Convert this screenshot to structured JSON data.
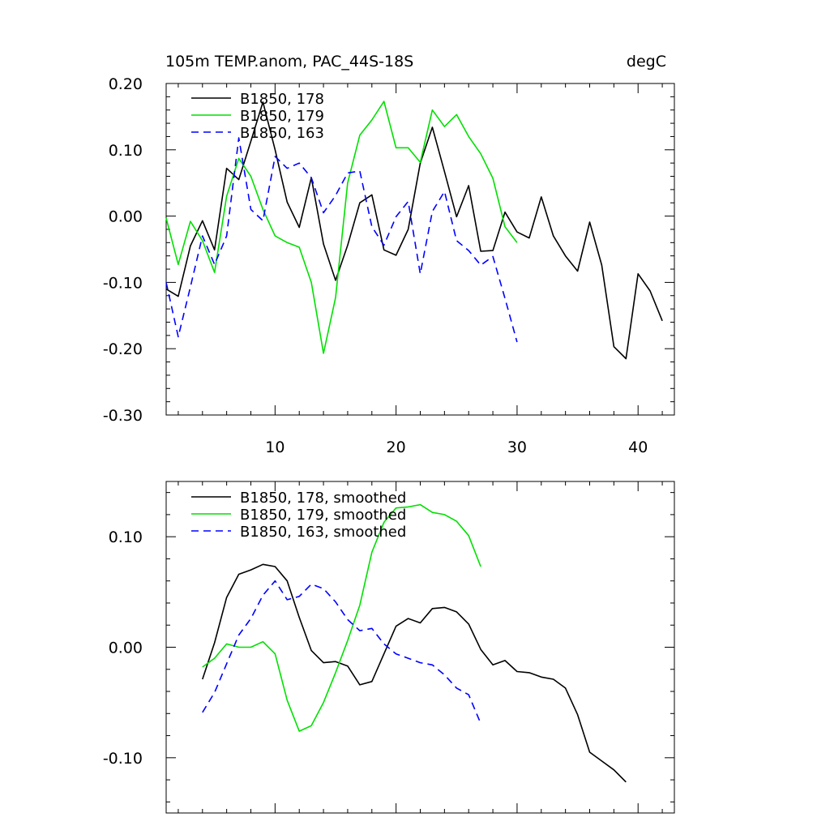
{
  "chart_data": [
    {
      "type": "line",
      "title": "105m TEMP.anom, PAC_44S-18S",
      "units": "degC",
      "xlim": [
        1,
        43
      ],
      "ylim": [
        -0.3,
        0.2
      ],
      "xticks": [
        10,
        20,
        30,
        40
      ],
      "xtick_labels": [
        "10",
        "20",
        "30",
        "40"
      ],
      "yticks": [
        -0.3,
        -0.2,
        -0.1,
        0.0,
        0.1,
        0.2
      ],
      "ytick_labels": [
        "-0.30",
        "-0.20",
        "-0.10",
        "0.00",
        "0.10",
        "0.20"
      ],
      "legend_position": "top-left",
      "series": [
        {
          "name": "B1850, 178",
          "color": "#000000",
          "dash": "solid",
          "x": [
            1,
            2,
            3,
            4,
            5,
            6,
            7,
            8,
            9,
            10,
            11,
            12,
            13,
            14,
            15,
            16,
            17,
            18,
            19,
            20,
            21,
            22,
            23,
            24,
            25,
            26,
            27,
            28,
            29,
            30,
            31,
            32,
            33,
            34,
            35,
            36,
            37,
            38,
            39,
            40,
            41,
            42
          ],
          "y": [
            -0.11,
            -0.121,
            -0.045,
            -0.007,
            -0.051,
            0.072,
            0.055,
            0.113,
            0.172,
            0.1,
            0.021,
            -0.017,
            0.058,
            -0.042,
            -0.097,
            -0.044,
            0.02,
            0.032,
            -0.051,
            -0.059,
            -0.02,
            0.08,
            0.134,
            0.067,
            -0.001,
            0.046,
            -0.053,
            -0.052,
            0.006,
            -0.024,
            -0.033,
            0.029,
            -0.03,
            -0.06,
            -0.083,
            -0.009,
            -0.074,
            -0.197,
            -0.215,
            -0.087,
            -0.113,
            -0.158
          ]
        },
        {
          "name": "B1850, 179",
          "color": "#00e000",
          "dash": "solid",
          "x": [
            1,
            2,
            3,
            4,
            5,
            6,
            7,
            8,
            9,
            10,
            11,
            12,
            13,
            14,
            15,
            16,
            17,
            18,
            19,
            20,
            21,
            22,
            23,
            24,
            25,
            26,
            27,
            28,
            29,
            30
          ],
          "y": [
            -0.003,
            -0.073,
            -0.008,
            -0.037,
            -0.085,
            0.03,
            0.087,
            0.06,
            0.01,
            -0.03,
            -0.04,
            -0.047,
            -0.1,
            -0.207,
            -0.123,
            0.05,
            0.122,
            0.145,
            0.173,
            0.103,
            0.103,
            0.081,
            0.16,
            0.135,
            0.153,
            0.12,
            0.094,
            0.057,
            -0.016,
            -0.04
          ]
        },
        {
          "name": "B1850, 163",
          "color": "#0000ff",
          "dash": "dashed",
          "x": [
            1,
            2,
            3,
            4,
            5,
            6,
            7,
            8,
            9,
            10,
            11,
            12,
            13,
            14,
            15,
            16,
            17,
            18,
            19,
            20,
            21,
            22,
            23,
            24,
            25,
            26,
            27,
            28,
            29,
            30
          ],
          "y": [
            -0.1,
            -0.182,
            -0.107,
            -0.03,
            -0.073,
            -0.03,
            0.118,
            0.01,
            -0.007,
            0.09,
            0.072,
            0.08,
            0.058,
            0.005,
            0.031,
            0.065,
            0.068,
            -0.016,
            -0.044,
            -0.001,
            0.022,
            -0.087,
            0.007,
            0.037,
            -0.037,
            -0.052,
            -0.074,
            -0.061,
            -0.124,
            -0.19
          ]
        }
      ]
    },
    {
      "type": "line",
      "xlim": [
        1,
        43
      ],
      "ylim": [
        -0.15,
        0.15
      ],
      "xticks": [
        10,
        20,
        30,
        40
      ],
      "yticks": [
        -0.1,
        0.0,
        0.1
      ],
      "ytick_labels": [
        "-0.10",
        "0.00",
        "0.10"
      ],
      "legend_position": "top-left",
      "series": [
        {
          "name": "B1850, 178, smoothed",
          "color": "#000000",
          "dash": "solid",
          "x": [
            4,
            5,
            6,
            7,
            8,
            9,
            10,
            11,
            12,
            13,
            14,
            15,
            16,
            17,
            18,
            19,
            20,
            21,
            22,
            23,
            24,
            25,
            26,
            27,
            28,
            29,
            30,
            31,
            32,
            33,
            34,
            35,
            36,
            37,
            38,
            39
          ],
          "y": [
            -0.029,
            0.004,
            0.045,
            0.066,
            0.07,
            0.075,
            0.073,
            0.06,
            0.027,
            -0.003,
            -0.014,
            -0.013,
            -0.017,
            -0.034,
            -0.031,
            -0.006,
            0.019,
            0.026,
            0.022,
            0.035,
            0.036,
            0.032,
            0.021,
            -0.002,
            -0.016,
            -0.012,
            -0.022,
            -0.023,
            -0.027,
            -0.029,
            -0.037,
            -0.061,
            -0.095,
            -0.103,
            -0.111,
            -0.122
          ]
        },
        {
          "name": "B1850, 179, smoothed",
          "color": "#00e000",
          "dash": "solid",
          "x": [
            4,
            5,
            6,
            7,
            8,
            9,
            10,
            11,
            12,
            13,
            14,
            15,
            16,
            17,
            18,
            19,
            20,
            21,
            22,
            23,
            24,
            25,
            26,
            27
          ],
          "y": [
            -0.018,
            -0.01,
            0.003,
            0.0,
            0.0,
            0.005,
            -0.006,
            -0.048,
            -0.076,
            -0.071,
            -0.05,
            -0.023,
            0.006,
            0.038,
            0.086,
            0.113,
            0.126,
            0.127,
            0.129,
            0.122,
            0.12,
            0.114,
            0.101,
            0.073
          ]
        },
        {
          "name": "B1850, 163, smoothed",
          "color": "#0000ff",
          "dash": "dashed",
          "x": [
            4,
            5,
            6,
            7,
            8,
            9,
            10,
            11,
            12,
            13,
            14,
            15,
            16,
            17,
            18,
            19,
            20,
            21,
            22,
            23,
            24,
            25,
            26,
            27
          ],
          "y": [
            -0.059,
            -0.041,
            -0.015,
            0.011,
            0.026,
            0.047,
            0.06,
            0.043,
            0.046,
            0.057,
            0.053,
            0.041,
            0.025,
            0.015,
            0.017,
            0.003,
            -0.006,
            -0.01,
            -0.014,
            -0.016,
            -0.025,
            -0.037,
            -0.043,
            -0.069
          ]
        }
      ]
    }
  ]
}
